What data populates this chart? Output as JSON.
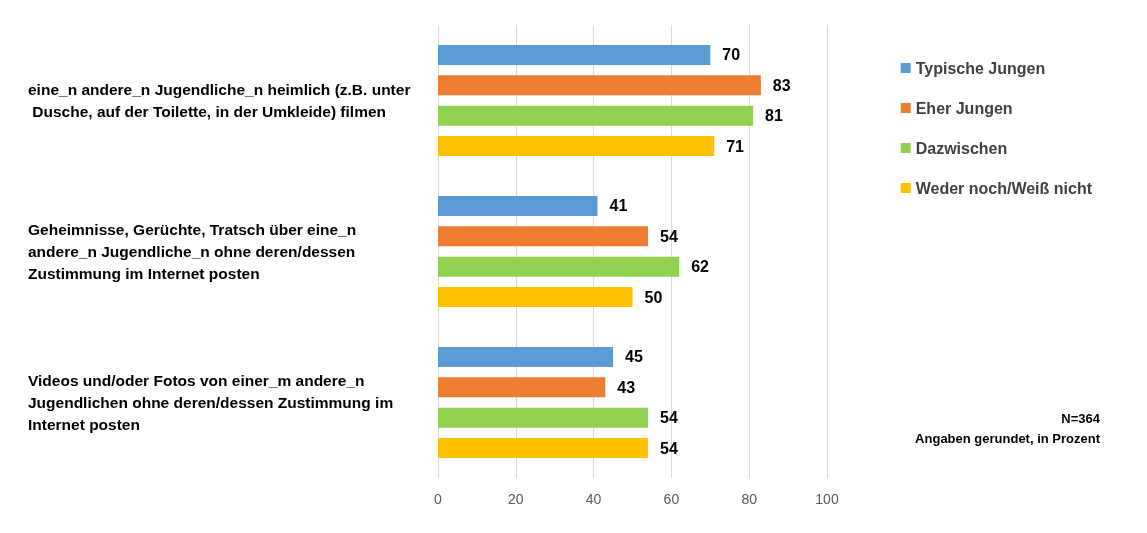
{
  "chart_data": {
    "type": "bar",
    "orientation": "horizontal",
    "categories": [
      "eine_n andere_n Jugendliche_n heimlich (z.B. unter Dusche, auf der Toilette, in der Umkleide) filmen",
      "Geheimnisse, Gerüchte, Tratsch über eine_n andere_n Jugendliche_n ohne deren/dessen Zustimmung im Internet posten",
      "Videos und/oder Fotos von einer_m andere_n Jugendlichen ohne deren/dessen Zustimmung im Internet posten"
    ],
    "series": [
      {
        "name": "Typische Jungen",
        "color": "#5b9bd5",
        "values": [
          70,
          41,
          45
        ]
      },
      {
        "name": "Eher Jungen",
        "color": "#ed7d31",
        "values": [
          83,
          54,
          43
        ]
      },
      {
        "name": "Dazwischen",
        "color": "#92d050",
        "values": [
          81,
          62,
          54
        ]
      },
      {
        "name": "Weder noch/Weiß nicht",
        "color": "#ffc000",
        "values": [
          71,
          50,
          54
        ]
      }
    ],
    "xlim": [
      0,
      100
    ],
    "xticks": [
      0,
      20,
      40,
      60,
      80,
      100
    ],
    "grid": "x",
    "legend": "right",
    "data_labels": true,
    "annotations": [
      "N=364",
      "Angaben gerundet, in Prozent"
    ]
  }
}
